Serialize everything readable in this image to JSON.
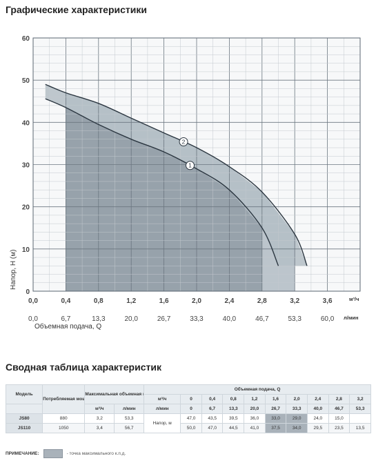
{
  "page": {
    "chart_title": "Графические характеристики",
    "table_title": "Сводная таблица характеристик"
  },
  "chart_data": {
    "type": "line",
    "xlabel": "Объемная подача, Q",
    "ylabel": "Напор, H (м)",
    "x_unit_primary": "м³/ч",
    "x_unit_secondary": "л/мин",
    "xlim": [
      0,
      4.0
    ],
    "ylim": [
      0,
      60
    ],
    "x_ticks": [
      "0,0",
      "0,4",
      "0,8",
      "1,2",
      "1,6",
      "2,0",
      "2,4",
      "2,8",
      "3,2",
      "3,6"
    ],
    "x_ticks_secondary": [
      "0,0",
      "6,7",
      "13,3",
      "20,0",
      "26,7",
      "33,3",
      "40,0",
      "46,7",
      "53,3",
      "60,0"
    ],
    "y_ticks": [
      "0",
      "10",
      "20",
      "30",
      "40",
      "50",
      "60"
    ],
    "grid": true,
    "series": [
      {
        "name": "1",
        "color": "#2b3640",
        "area_color": "#97a2ab",
        "area_x_range": [
          0.4,
          2.8
        ],
        "points": [
          [
            0.15,
            45.6
          ],
          [
            0.4,
            43.5
          ],
          [
            0.8,
            39.5
          ],
          [
            1.2,
            36.0
          ],
          [
            1.6,
            33.0
          ],
          [
            2.0,
            29.0
          ],
          [
            2.4,
            24.0
          ],
          [
            2.8,
            15.0
          ],
          [
            3.0,
            6.0
          ]
        ]
      },
      {
        "name": "2",
        "color": "#2b3640",
        "area_color": "#bcc5cc",
        "area_x_range": [
          2.8,
          3.2
        ],
        "points": [
          [
            0.15,
            49.0
          ],
          [
            0.4,
            47.0
          ],
          [
            0.8,
            44.5
          ],
          [
            1.2,
            41.0
          ],
          [
            1.6,
            37.5
          ],
          [
            2.0,
            34.0
          ],
          [
            2.4,
            29.5
          ],
          [
            2.8,
            23.5
          ],
          [
            3.2,
            13.5
          ],
          [
            3.35,
            6.0
          ]
        ]
      }
    ]
  },
  "table": {
    "col_model": "Модель",
    "col_power": "Потребляемая мощность (P1) Вт",
    "col_qmax": "Максимальная объемная подача, Qmax",
    "col_flow": "Объемная подача, Q",
    "unit_m3h": "м³/ч",
    "unit_lmin": "л/мин",
    "flow_m3h": [
      "0",
      "0,4",
      "0,8",
      "1,2",
      "1,6",
      "2,0",
      "2,4",
      "2,8",
      "3,2"
    ],
    "flow_lmin": [
      "0",
      "6,7",
      "13,3",
      "20,0",
      "26,7",
      "33,3",
      "40,0",
      "46,7",
      "53,3"
    ],
    "head_label": "Напор, м",
    "rows": [
      {
        "model": "JS80",
        "power": "880",
        "qmax_m3h": "3,2",
        "qmax_lmin": "53,3",
        "head": [
          "47,0",
          "43,5",
          "39,5",
          "36,0",
          "33,0",
          "29,0",
          "24,0",
          "15,0",
          ""
        ]
      },
      {
        "model": "JS110",
        "power": "1050",
        "qmax_m3h": "3,4",
        "qmax_lmin": "56,7",
        "head": [
          "50,0",
          "47,0",
          "44,5",
          "41,0",
          "37,5",
          "34,0",
          "29,5",
          "23,5",
          "13,5"
        ]
      }
    ]
  },
  "note": {
    "label": "ПРИМЕЧАНИЕ:",
    "text": "- точка максимального к.п.д."
  }
}
